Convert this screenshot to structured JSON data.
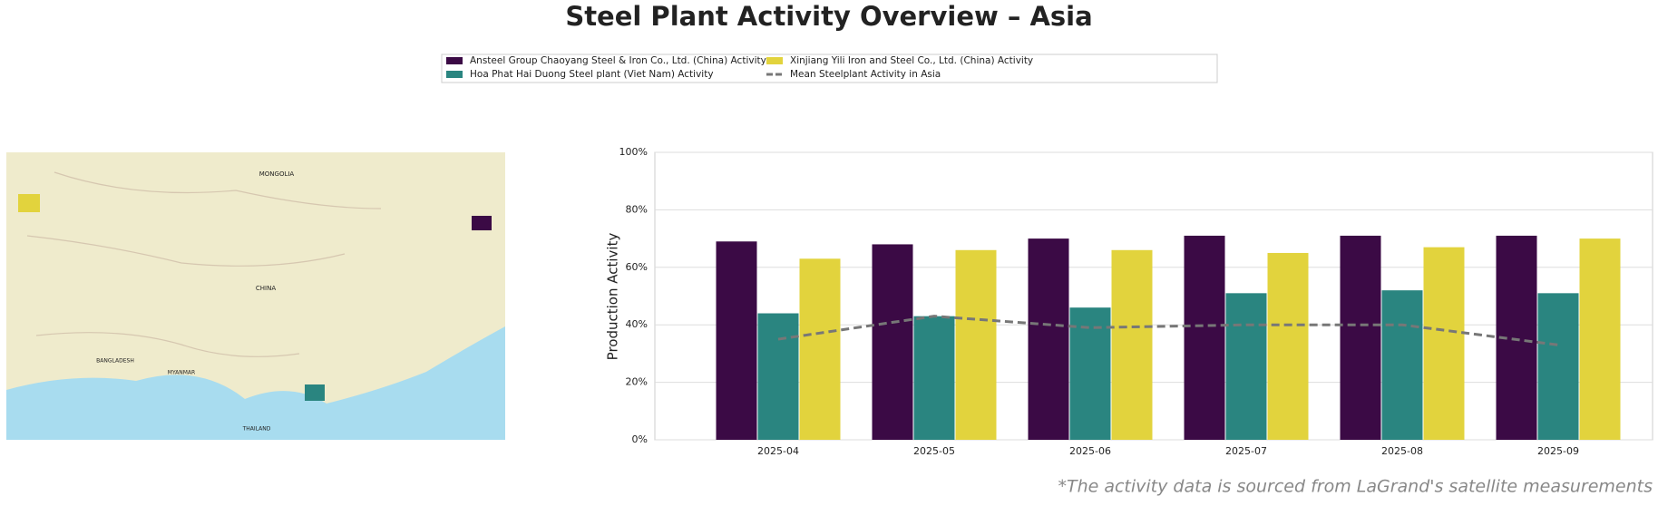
{
  "chart_data": {
    "type": "bar",
    "title": "Steel Plant Activity Overview – Asia",
    "ylabel": "Production Activity",
    "footnote": "*The activity data is sourced from LaGrand's satellite measurements",
    "categories": [
      "2025-04",
      "2025-05",
      "2025-06",
      "2025-07",
      "2025-08",
      "2025-09"
    ],
    "series": [
      {
        "name": "Ansteel Group Chaoyang Steel & Iron Co., Ltd. (China) Activity",
        "color": "#3b0a45",
        "values": [
          69,
          68,
          70,
          71,
          71,
          71
        ]
      },
      {
        "name": "Hoa Phat Hai Duong Steel plant (Viet Nam) Activity",
        "color": "#2a8580",
        "values": [
          44,
          43,
          46,
          51,
          52,
          51
        ]
      },
      {
        "name": "Xinjiang Yili Iron and Steel Co., Ltd. (China) Activity",
        "color": "#e2d33d",
        "values": [
          63,
          66,
          66,
          65,
          67,
          70
        ]
      },
      {
        "name": "Mean Steelplant Activity in Asia",
        "color": "#777777",
        "type": "line",
        "values": [
          35,
          43,
          39,
          40,
          40,
          33
        ]
      }
    ],
    "ylim": [
      0,
      100
    ],
    "yticks": [
      {
        "value": 0,
        "label": "0%"
      },
      {
        "value": 20,
        "label": "20%"
      },
      {
        "value": 40,
        "label": "40%"
      },
      {
        "value": 60,
        "label": "60%"
      },
      {
        "value": 80,
        "label": "80%"
      },
      {
        "value": 100,
        "label": "100%"
      }
    ],
    "grid": true
  },
  "map": {
    "labels": [
      "MONGOLIA",
      "CHINA",
      "MYANMAR",
      "THAILAND",
      "BANGLADESH"
    ]
  }
}
